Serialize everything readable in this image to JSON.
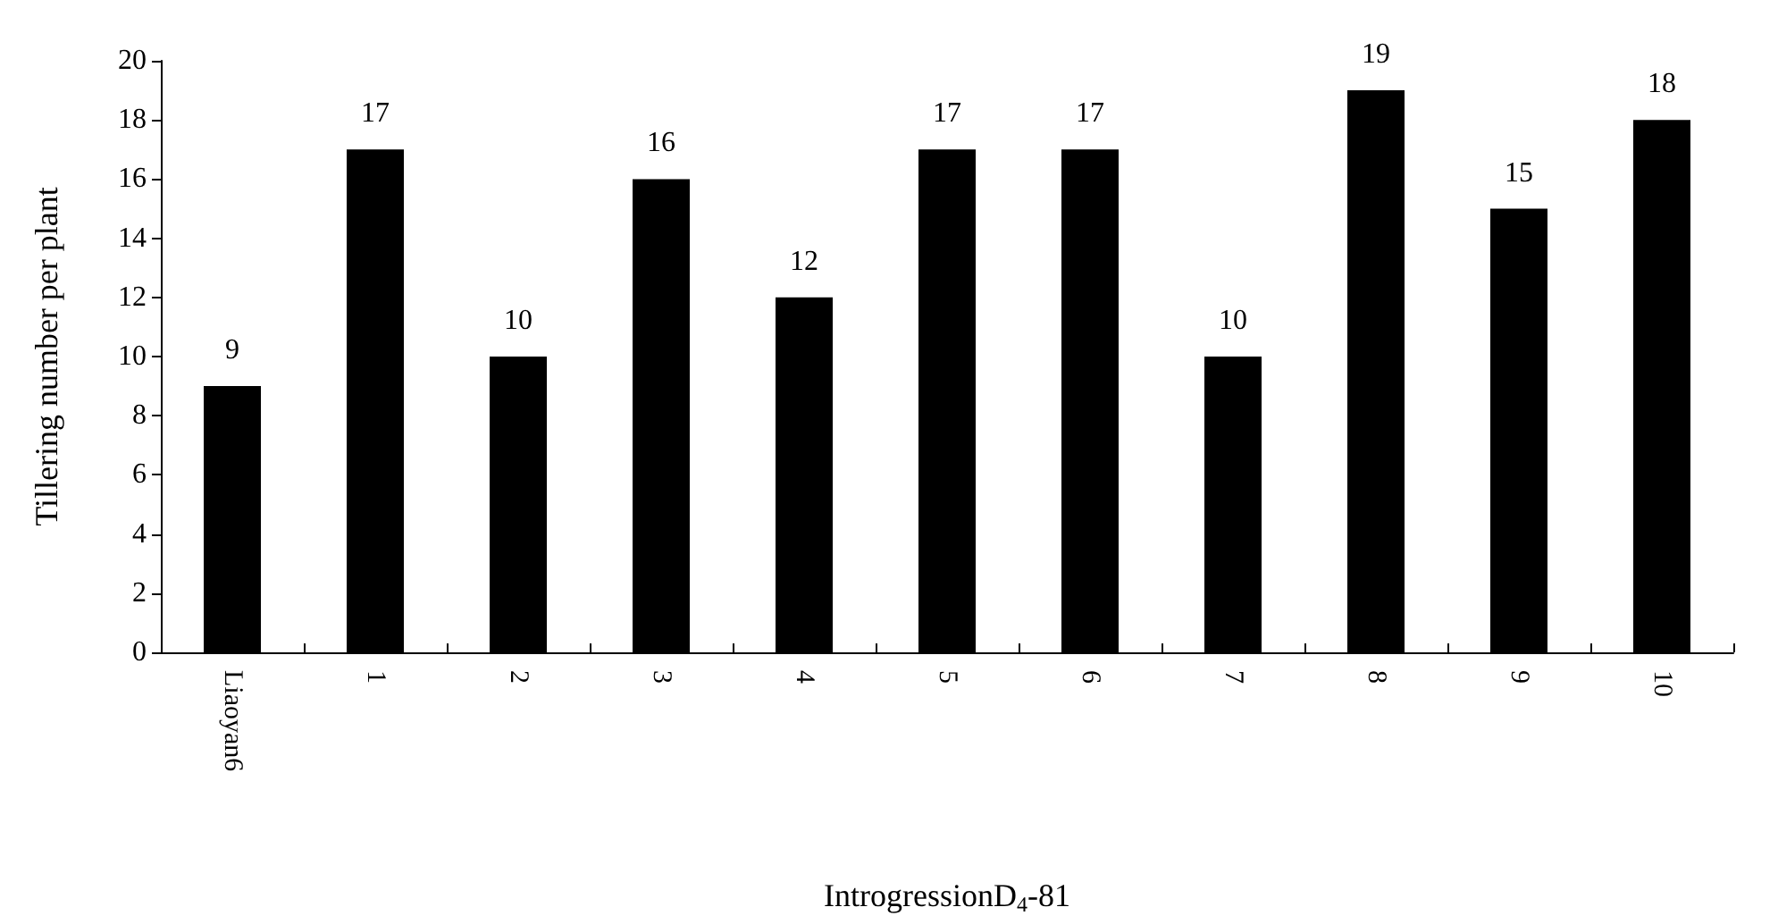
{
  "chart_data": {
    "type": "bar",
    "xlabel": "IntrogressionD$_{4}$-81",
    "ylabel": "Tillering number per plant",
    "categories": [
      "Liaoyan6",
      "1",
      "2",
      "3",
      "4",
      "5",
      "6",
      "7",
      "8",
      "9",
      "10"
    ],
    "values": [
      9,
      17,
      10,
      16,
      12,
      17,
      17,
      10,
      19,
      15,
      18
    ],
    "color": "#000000",
    "ylim": [
      0,
      20
    ],
    "yticks": [
      0,
      2,
      4,
      6,
      8,
      10,
      12,
      14,
      16,
      18,
      20
    ],
    "grid": false,
    "data_labels": true
  }
}
